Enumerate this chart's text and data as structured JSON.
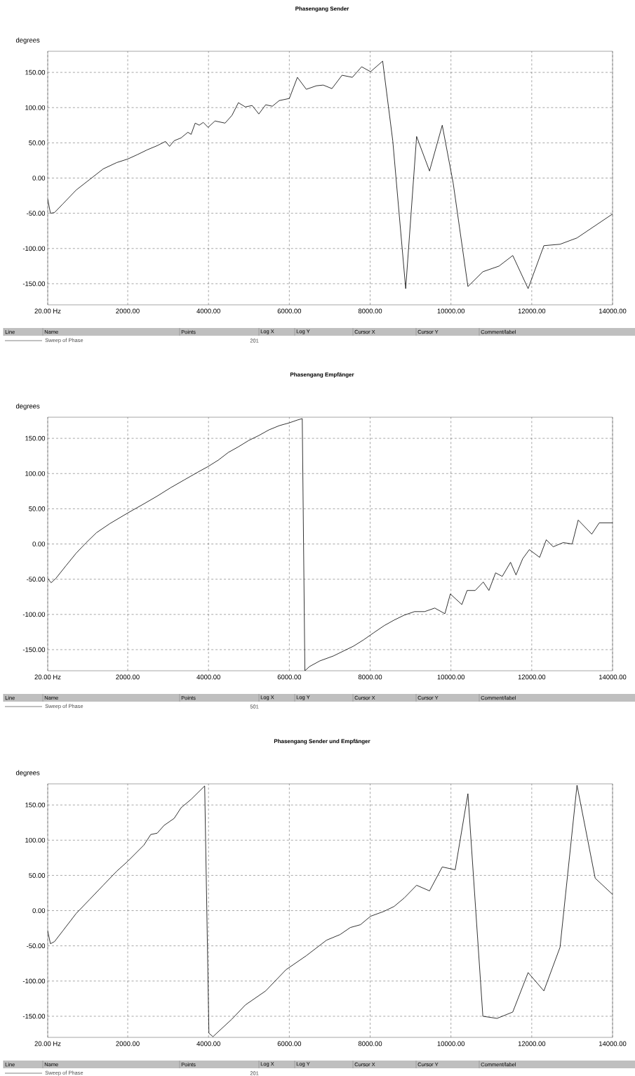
{
  "chart_data": [
    {
      "type": "line",
      "title": "Phasengang Sender",
      "ylabel": "degrees",
      "xlim": [
        20,
        14000
      ],
      "ylim": [
        -180,
        180
      ],
      "grid": true,
      "legend": "bottom",
      "marker": "none",
      "line_style": "solid",
      "xticks": [
        {
          "value": 20,
          "label": "20.00 Hz"
        },
        {
          "value": 2000,
          "label": "2000.00"
        },
        {
          "value": 4000,
          "label": "4000.00"
        },
        {
          "value": 6000,
          "label": "6000.00"
        },
        {
          "value": 8000,
          "label": "8000.00"
        },
        {
          "value": 10000,
          "label": "10000.00"
        },
        {
          "value": 12000,
          "label": "12000.00"
        },
        {
          "value": 14000,
          "label": "14000.00"
        }
      ],
      "yticks": [
        {
          "value": -150,
          "label": "-150.00"
        },
        {
          "value": -100,
          "label": "-100.00"
        },
        {
          "value": -50,
          "label": "-50.00"
        },
        {
          "value": 0,
          "label": "0.00"
        },
        {
          "value": 50,
          "label": "50.00"
        },
        {
          "value": 100,
          "label": "100.00"
        },
        {
          "value": 150,
          "label": "150.00"
        }
      ],
      "annotations": [
        "Line",
        "Name",
        "Points",
        "Log X",
        "Log Y",
        "Cursor X",
        "Cursor Y",
        "Comment/label",
        "201"
      ],
      "series": [
        {
          "name": "Sweep of Phase",
          "color": "#000000",
          "x": [
            20,
            87,
            188,
            390,
            725,
            1060,
            1394,
            1729,
            2000,
            2230,
            2480,
            2730,
            2935,
            3035,
            3150,
            3320,
            3490,
            3570,
            3670,
            3770,
            3870,
            3990,
            4160,
            4410,
            4580,
            4740,
            4910,
            5080,
            5245,
            5415,
            5580,
            5750,
            6000,
            6200,
            6420,
            6670,
            6840,
            7055,
            7305,
            7560,
            7790,
            8010,
            8310,
            8560,
            8880,
            9150,
            9470,
            9785,
            10055,
            10420,
            10790,
            11190,
            11530,
            11910,
            12300,
            12700,
            13120,
            14000
          ],
          "values": [
            -30,
            -50,
            -49,
            -37,
            -17,
            -2,
            13,
            22,
            27,
            33,
            40,
            46,
            52,
            45,
            53,
            57,
            65,
            62,
            78,
            75,
            79,
            72,
            81,
            78,
            89,
            107,
            101,
            103,
            91,
            104,
            102,
            110,
            113,
            143,
            126,
            131,
            132,
            127,
            146,
            143,
            158,
            151,
            166,
            53,
            -157,
            59,
            10,
            75,
            -7,
            -154,
            -133,
            -125,
            -110,
            -157,
            -96,
            -94,
            -85,
            -51
          ]
        }
      ]
    },
    {
      "type": "line",
      "title": "Phasengang Empfänger",
      "ylabel": "degrees",
      "xlim": [
        20,
        14000
      ],
      "ylim": [
        -180,
        180
      ],
      "grid": true,
      "legend": "bottom",
      "marker": "none",
      "line_style": "solid",
      "xticks": [
        {
          "value": 20,
          "label": "20.00 Hz"
        },
        {
          "value": 2000,
          "label": "2000.00"
        },
        {
          "value": 4000,
          "label": "4000.00"
        },
        {
          "value": 6000,
          "label": "6000.00"
        },
        {
          "value": 8000,
          "label": "8000.00"
        },
        {
          "value": 10000,
          "label": "10000.00"
        },
        {
          "value": 12000,
          "label": "12000.00"
        },
        {
          "value": 14000,
          "label": "14000.00"
        }
      ],
      "yticks": [
        {
          "value": -150,
          "label": "-150.00"
        },
        {
          "value": -100,
          "label": "-100.00"
        },
        {
          "value": -50,
          "label": "-50.00"
        },
        {
          "value": 0,
          "label": "0.00"
        },
        {
          "value": 50,
          "label": "50.00"
        },
        {
          "value": 100,
          "label": "100.00"
        },
        {
          "value": 150,
          "label": "150.00"
        }
      ],
      "annotations": [
        "Line",
        "Name",
        "Points",
        "Log X",
        "Log Y",
        "Cursor X",
        "Cursor Y",
        "Comment/label",
        "501"
      ],
      "series": [
        {
          "name": "Sweep of Phase",
          "color": "#000000",
          "x": [
            20,
            104,
            220,
            470,
            725,
            975,
            1226,
            1560,
            2000,
            2400,
            2730,
            3065,
            3400,
            3735,
            3990,
            4240,
            4490,
            4740,
            4995,
            5245,
            5495,
            5750,
            6000,
            6200,
            6320,
            6385,
            6500,
            6755,
            7090,
            7340,
            7590,
            7840,
            8090,
            8345,
            8595,
            8845,
            9100,
            9350,
            9600,
            9850,
            9985,
            10270,
            10400,
            10600,
            10800,
            10940,
            11105,
            11270,
            11475,
            11610,
            11775,
            11940,
            12195,
            12360,
            12530,
            12780,
            13000,
            13150,
            13485,
            13670,
            14000
          ],
          "values": [
            -49,
            -55,
            -49,
            -31,
            -13,
            2,
            16,
            29,
            44,
            57,
            68,
            80,
            91,
            102,
            110,
            119,
            130,
            138,
            147,
            154,
            162,
            168,
            172,
            176,
            178,
            -180,
            -174,
            -166,
            -159,
            -152,
            -145,
            -136,
            -126,
            -116,
            -108,
            -101,
            -96,
            -96,
            -91,
            -99,
            -71,
            -86,
            -66,
            -66,
            -54,
            -66,
            -41,
            -46,
            -26,
            -44,
            -21,
            -8,
            -19,
            6,
            -4,
            2,
            0,
            34,
            14,
            30,
            30
          ]
        }
      ]
    },
    {
      "type": "line",
      "title": "Phasengang Sender und Empfänger",
      "ylabel": "degrees",
      "xlim": [
        20,
        14000
      ],
      "ylim": [
        -180,
        180
      ],
      "grid": true,
      "legend": "bottom",
      "marker": "none",
      "line_style": "solid",
      "xticks": [
        {
          "value": 20,
          "label": "20.00 Hz"
        },
        {
          "value": 2000,
          "label": "2000.00"
        },
        {
          "value": 4000,
          "label": "4000.00"
        },
        {
          "value": 6000,
          "label": "6000.00"
        },
        {
          "value": 8000,
          "label": "8000.00"
        },
        {
          "value": 10000,
          "label": "10000.00"
        },
        {
          "value": 12000,
          "label": "12000.00"
        },
        {
          "value": 14000,
          "label": "14000.00"
        }
      ],
      "yticks": [
        {
          "value": -150,
          "label": "-150.00"
        },
        {
          "value": -100,
          "label": "-100.00"
        },
        {
          "value": -50,
          "label": "-50.00"
        },
        {
          "value": 0,
          "label": "0.00"
        },
        {
          "value": 50,
          "label": "50.00"
        },
        {
          "value": 100,
          "label": "100.00"
        },
        {
          "value": 150,
          "label": "150.00"
        }
      ],
      "annotations": [
        "Line",
        "Name",
        "Points",
        "Log X",
        "Log Y",
        "Cursor X",
        "Cursor Y",
        "Comment/label",
        "201"
      ],
      "series": [
        {
          "name": "Sweep of Phase",
          "color": "#000000",
          "x": [
            20,
            87,
            188,
            390,
            725,
            1060,
            1394,
            1729,
            2000,
            2400,
            2570,
            2730,
            2900,
            3150,
            3320,
            3570,
            3905,
            4010,
            4110,
            4240,
            4580,
            4910,
            5415,
            5915,
            6420,
            6920,
            7255,
            7510,
            7760,
            8010,
            8345,
            8595,
            8845,
            9150,
            9470,
            9785,
            10105,
            10420,
            10790,
            11140,
            11530,
            11910,
            12300,
            12700,
            13120,
            13570,
            14000
          ],
          "values": [
            -29,
            -47,
            -44,
            -29,
            -4,
            16,
            36,
            56,
            70,
            93,
            108,
            110,
            121,
            131,
            146,
            158,
            177,
            -174,
            -179,
            -172,
            -154,
            -134,
            -114,
            -84,
            -64,
            -42,
            -34,
            -24,
            -20,
            -8,
            -1,
            6,
            18,
            36,
            28,
            62,
            58,
            166,
            -150,
            -153,
            -144,
            -88,
            -114,
            -52,
            178,
            46,
            23
          ]
        }
      ]
    }
  ]
}
